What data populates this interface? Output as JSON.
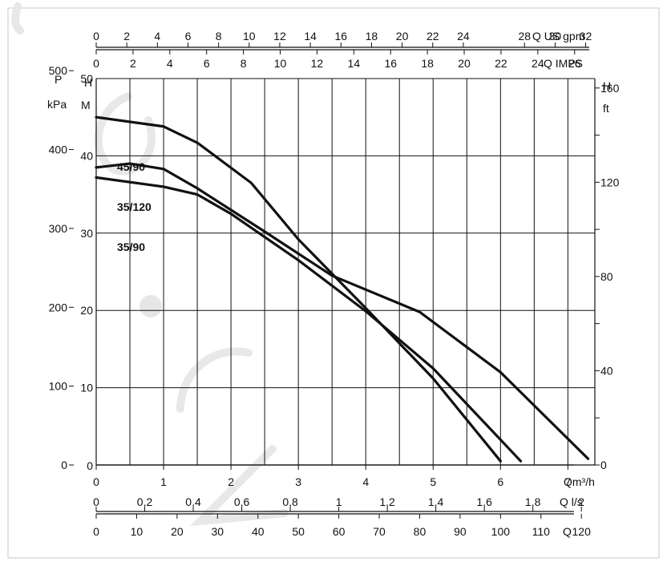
{
  "chart_data": {
    "type": "line",
    "x_axes": {
      "flow_m3h": {
        "label": "Qm³/h",
        "ticks": [
          "0",
          "1",
          "2",
          "3",
          "4",
          "5",
          "6",
          "7"
        ],
        "range": [
          0,
          7.4
        ]
      },
      "flow_ls": {
        "label": "Q l/s",
        "ticks": [
          "0",
          "0,2",
          "0,4",
          "0,6",
          "0,8",
          "1",
          "1,2",
          "1,4",
          "1,6",
          "1,8",
          "2"
        ],
        "range": [
          0,
          2.0556
        ]
      },
      "flow_lmin": {
        "label": "Q",
        "ticks": [
          "0",
          "10",
          "20",
          "30",
          "40",
          "50",
          "60",
          "70",
          "80",
          "90",
          "100",
          "110",
          "120"
        ],
        "range": [
          0,
          123.33
        ]
      },
      "flow_us_gpm": {
        "label": "Q US gpm",
        "ticks": [
          "0",
          "2",
          "4",
          "6",
          "8",
          "10",
          "12",
          "14",
          "16",
          "18",
          "20",
          "22",
          "24",
          "28",
          "30",
          "32"
        ],
        "range": [
          0,
          32.6
        ]
      },
      "flow_imp_gpm": {
        "label": "Q IMPS",
        "ticks": [
          "0",
          "2",
          "4",
          "6",
          "8",
          "10",
          "12",
          "14",
          "16",
          "18",
          "20",
          "22",
          "24",
          "26"
        ],
        "range": [
          0,
          27.1
        ]
      }
    },
    "y_axes": {
      "pressure_kpa": {
        "label_top": "P",
        "label_bottom": "kPa",
        "ticks": [
          "0",
          "100",
          "200",
          "300",
          "400",
          "500"
        ],
        "range": [
          0,
          490
        ]
      },
      "head_m": {
        "label_top": "H",
        "label_bottom": "M",
        "ticks": [
          "10",
          "20",
          "30",
          "40",
          "50"
        ],
        "range": [
          0,
          50
        ]
      },
      "head_ft": {
        "label_top": "H",
        "label_bottom": "ft",
        "ticks": [
          "0",
          "40",
          "80",
          "120",
          "160"
        ],
        "range": [
          0,
          164
        ]
      }
    },
    "grid": true,
    "series": [
      {
        "name": "45/90",
        "x": [
          0,
          1,
          1.5,
          2.3,
          3,
          4,
          5,
          6
        ],
        "y": [
          45,
          43.8,
          41.7,
          36.5,
          29.2,
          20.3,
          11.2,
          0.5
        ]
      },
      {
        "name": "35/120",
        "x": [
          0,
          0.5,
          1,
          1.5,
          2.5,
          3.5,
          4.8,
          6,
          7.3
        ],
        "y": [
          38.5,
          39,
          38.3,
          35.8,
          30.2,
          24.5,
          19.8,
          12,
          0.8
        ]
      },
      {
        "name": "35/90",
        "x": [
          0,
          1,
          1.5,
          2,
          3,
          4,
          5,
          6.3
        ],
        "y": [
          37.2,
          36,
          35,
          32.5,
          26.5,
          19.9,
          12.5,
          0.5
        ]
      }
    ]
  }
}
